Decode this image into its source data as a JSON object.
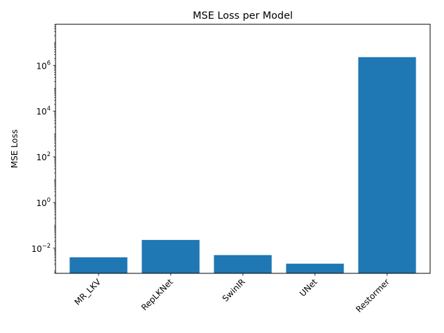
{
  "chart_data": {
    "type": "bar",
    "title": "MSE Loss per Model",
    "xlabel": "",
    "ylabel": "MSE Loss",
    "yscale": "log",
    "ylim_exponents": [
      -3.1,
      7.8
    ],
    "major_ticks": [
      {
        "base": "10",
        "exp": "−2",
        "value": 0.01
      },
      {
        "base": "10",
        "exp": "0",
        "value": 1
      },
      {
        "base": "10",
        "exp": "2",
        "value": 100
      },
      {
        "base": "10",
        "exp": "4",
        "value": 10000
      },
      {
        "base": "10",
        "exp": "6",
        "value": 1000000
      }
    ],
    "categories": [
      "MR_LKV",
      "RepLKNet",
      "SwinIR",
      "UNet",
      "Restormer"
    ],
    "values": [
      0.004,
      0.023,
      0.005,
      0.0021,
      2300000
    ],
    "bar_color": "#1f77b4",
    "grid": false,
    "legend": "none"
  }
}
